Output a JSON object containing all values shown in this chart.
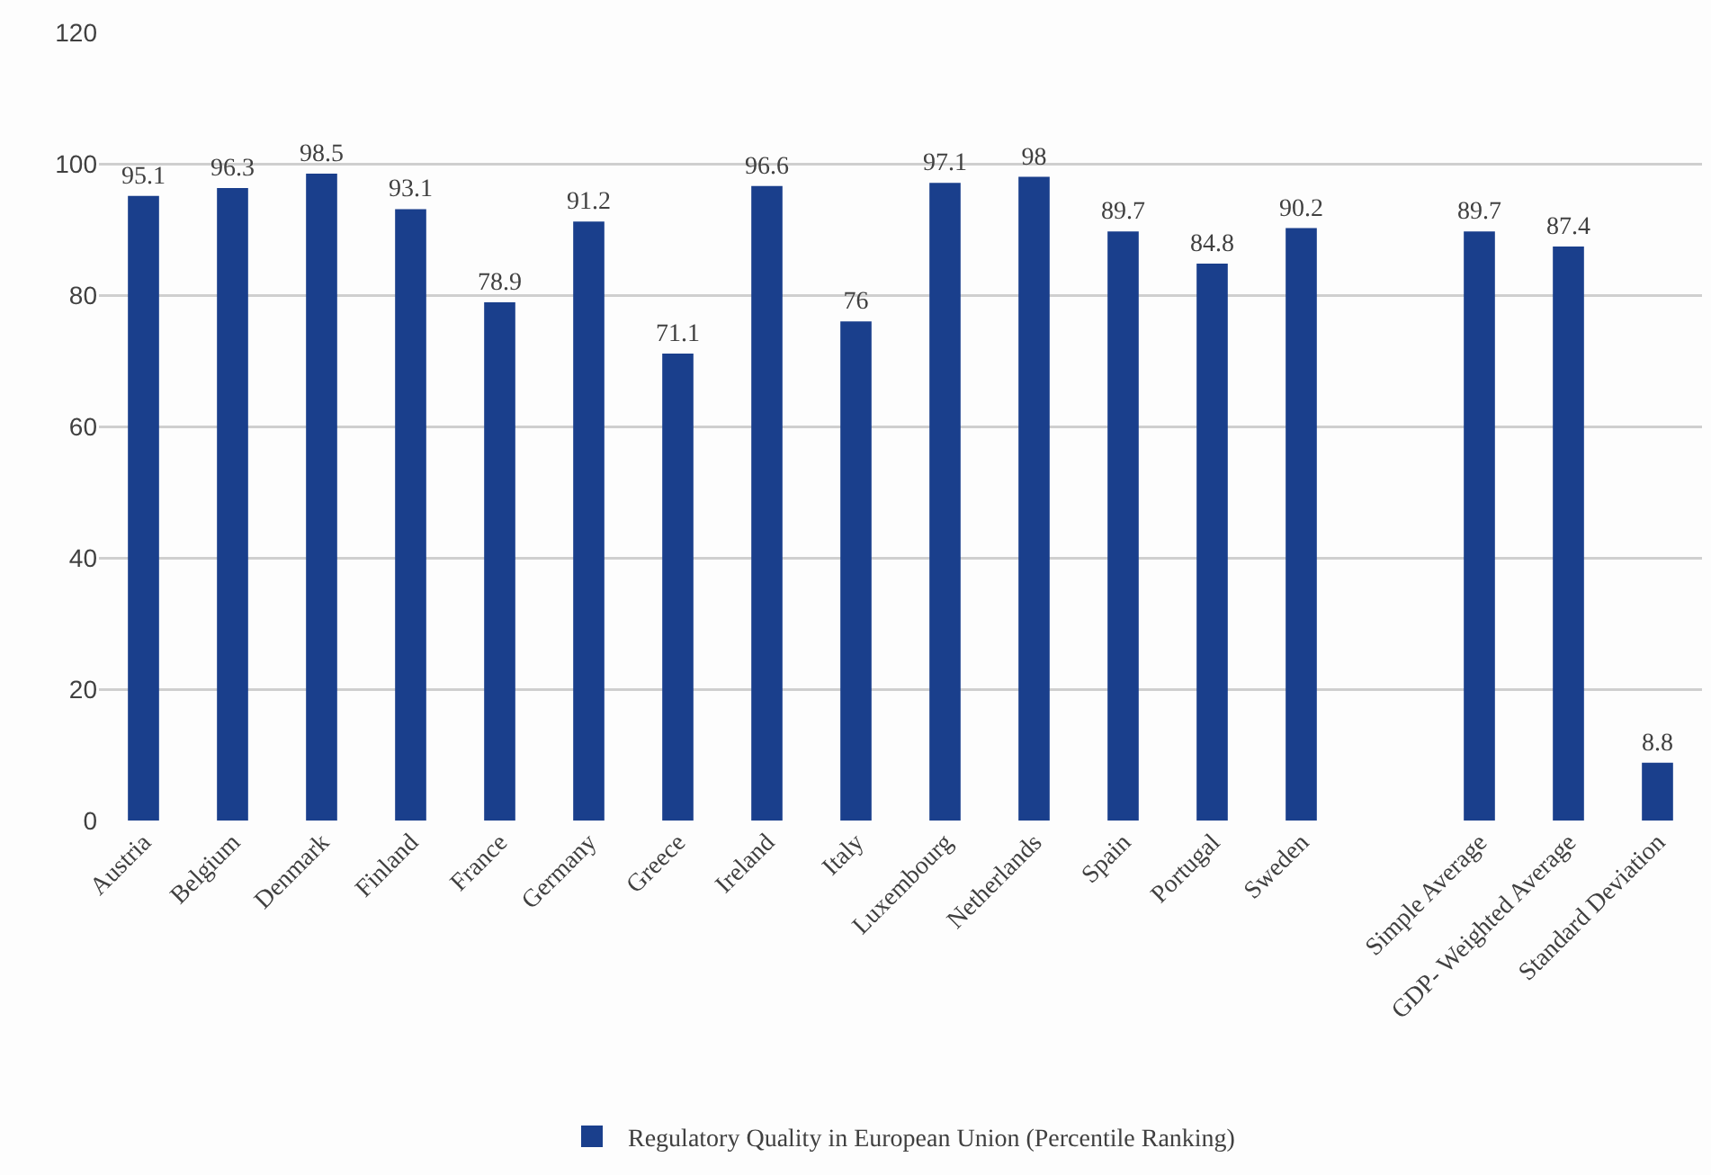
{
  "chart_data": {
    "type": "bar",
    "categories": [
      "Austria",
      "Belgium",
      "Denmark",
      "Finland",
      "France",
      "Germany",
      "Greece",
      "Ireland",
      "Italy",
      "Luxembourg",
      "Netherlands",
      "Spain",
      "Portugal",
      "Sweden",
      null,
      "Simple Average",
      "GDP- Weighted Average",
      "Standard Deviation"
    ],
    "series": [
      {
        "name": "Regulatory Quality in European Union (Percentile Ranking)",
        "color": "#1a3f8c",
        "values": [
          95.1,
          96.3,
          98.5,
          93.1,
          78.9,
          91.2,
          71.1,
          96.6,
          76,
          97.1,
          98,
          89.7,
          84.8,
          90.2,
          null,
          89.7,
          87.4,
          8.8
        ]
      }
    ],
    "ylim": [
      0,
      120
    ],
    "yticks": [
      0,
      20,
      40,
      60,
      80,
      100,
      120
    ],
    "grid": "y",
    "legend": "bottom",
    "data_labels": true
  }
}
